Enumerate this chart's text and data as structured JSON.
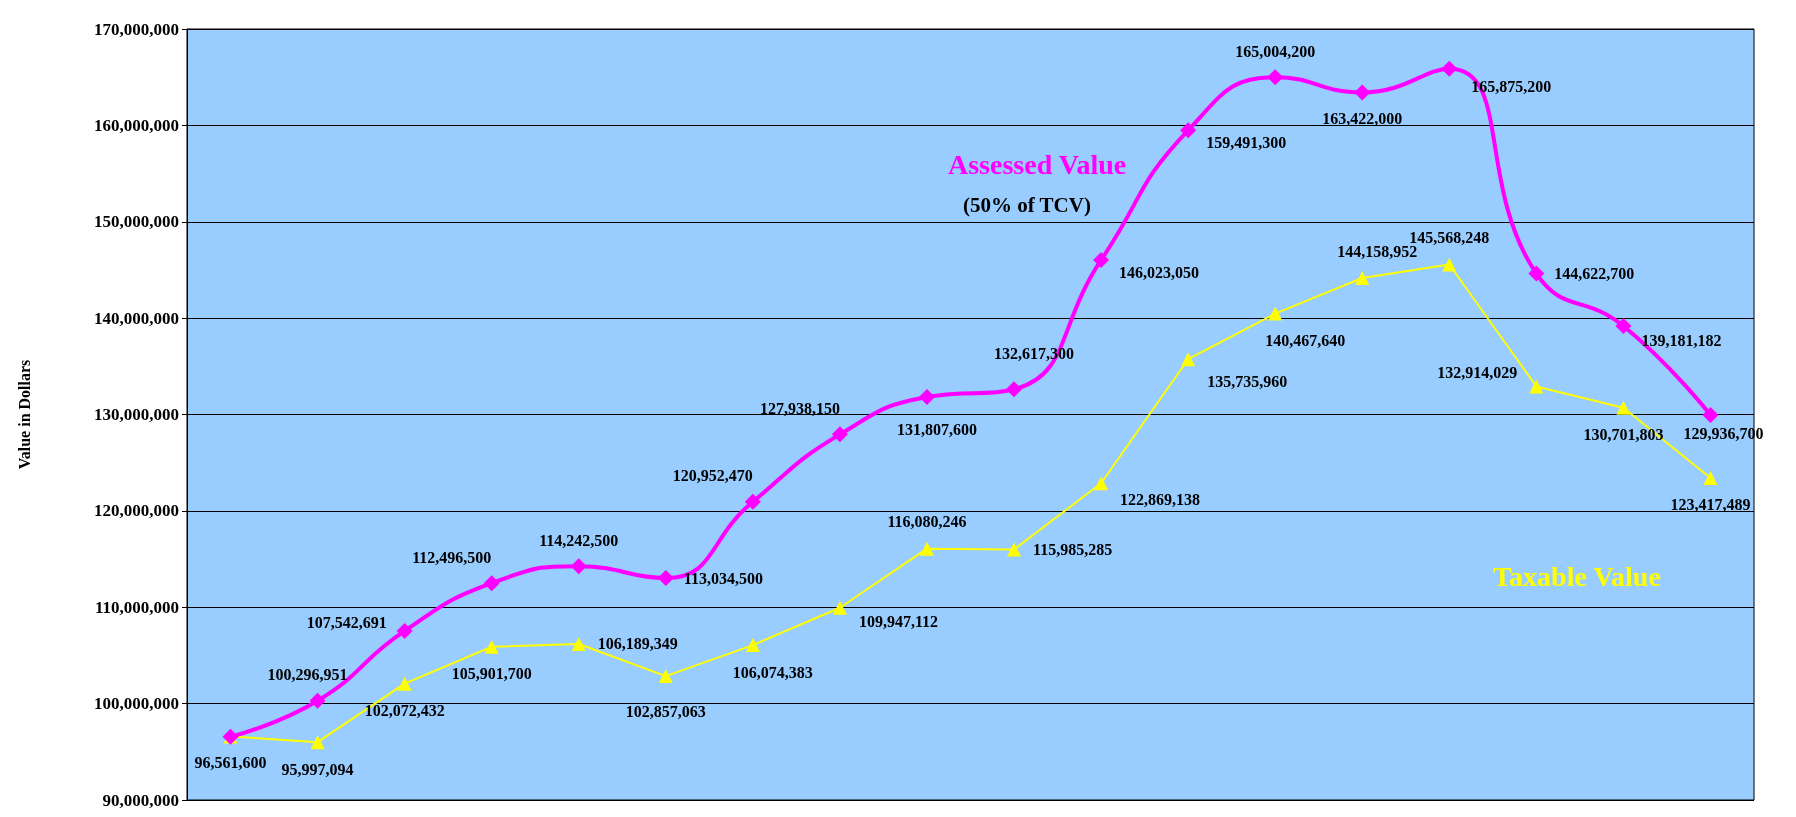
{
  "chart_data": {
    "type": "line",
    "ylabel": "Value in Dollars",
    "categories": [
      null,
      null,
      null,
      null,
      null,
      null,
      null,
      null,
      null,
      null,
      null,
      null,
      null,
      null,
      null,
      null,
      null,
      null
    ],
    "series": [
      {
        "name": "Assessed Value",
        "color": "#ff00ff",
        "marker": "diamond",
        "values": [
          96561600,
          100296951,
          107542691,
          112496500,
          114242500,
          113034500,
          120952470,
          127938150,
          131807600,
          132617300,
          146023050,
          159491300,
          165004200,
          163422000,
          165875200,
          144622700,
          139181182,
          129936700
        ],
        "value_labels": [
          "96,561,600",
          "100,296,951",
          "107,542,691",
          "112,496,500",
          "114,242,500",
          "113,034,500",
          "120,952,470",
          "127,938,150",
          "131,807,600",
          "132,617,300",
          "146,023,050",
          "159,491,300",
          "165,004,200",
          "163,422,000",
          "165,875,200",
          "144,622,700",
          "139,181,182",
          "129,936,700"
        ]
      },
      {
        "name": "Taxable Value",
        "color": "#ffff00",
        "marker": "triangle",
        "values": [
          96600000,
          95997094,
          102072432,
          105901700,
          106189349,
          102857063,
          106074383,
          109947112,
          116080246,
          115985285,
          122869138,
          135735960,
          140467640,
          144158952,
          145568248,
          132914029,
          130701803,
          123417489
        ],
        "value_labels": [
          null,
          "95,997,094",
          "102,072,432",
          "105,901,700",
          "106,189,349",
          "102,857,063",
          "106,074,383",
          "109,947,112",
          "116,080,246",
          "115,985,285",
          "122,869,138",
          "135,735,960",
          "140,467,640",
          "144,158,952",
          "145,568,248",
          "132,914,029",
          "130,701,803",
          "123,417,489"
        ]
      }
    ],
    "annotations": [
      "(50% of TCV)"
    ],
    "ylim": [
      90000000,
      170000000
    ],
    "yticks": [
      {
        "value": 90000000,
        "label": "90,000,000"
      },
      {
        "value": 100000000,
        "label": "100,000,000"
      },
      {
        "value": 110000000,
        "label": "110,000,000"
      },
      {
        "value": 120000000,
        "label": "120,000,000"
      },
      {
        "value": 130000000,
        "label": "130,000,000"
      },
      {
        "value": 140000000,
        "label": "140,000,000"
      },
      {
        "value": 150000000,
        "label": "150,000,000"
      },
      {
        "value": 160000000,
        "label": "160,000,000"
      },
      {
        "value": 170000000,
        "label": "170,000,000"
      }
    ],
    "grid": "y",
    "legend": false
  }
}
